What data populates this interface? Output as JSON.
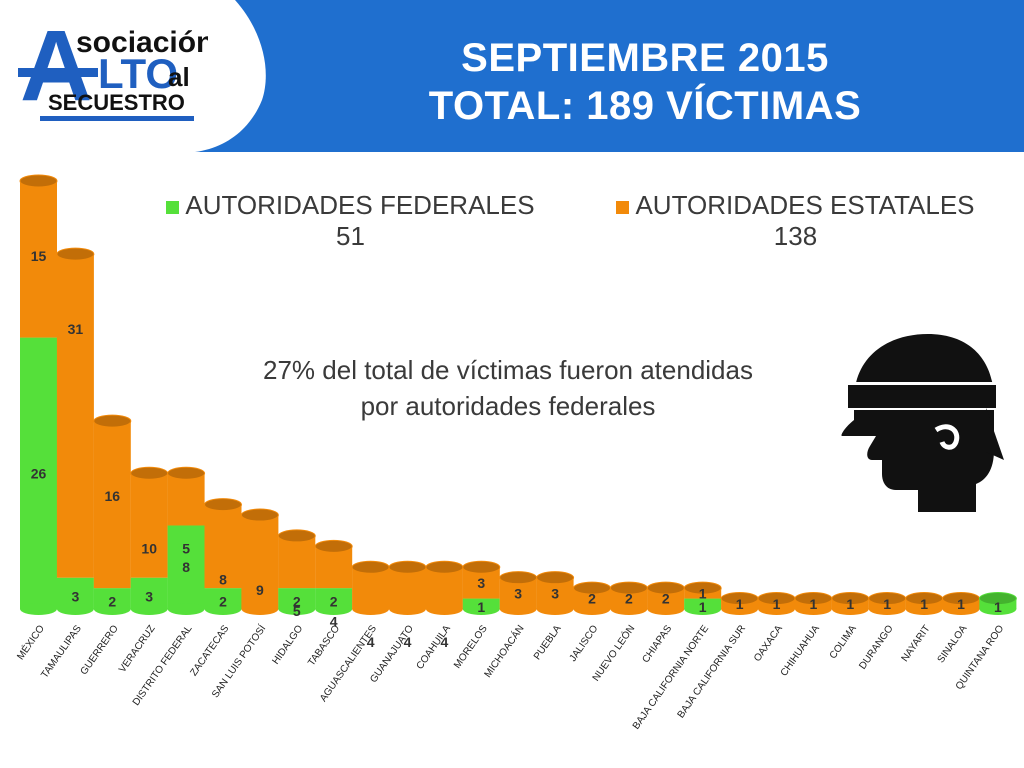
{
  "header": {
    "title_line1": "SEPTIEMBRE 2015",
    "title_line2": "TOTAL: 189 VÍCTIMAS",
    "band_color": "#1f6fcf",
    "logo": {
      "word1": "sociación",
      "big_letter": "A",
      "word2": "LTO",
      "word3": "al",
      "word4": "SECUESTRO"
    }
  },
  "legend": [
    {
      "label": "AUTORIDADES FEDERALES",
      "value": "51",
      "color": "#55e03a"
    },
    {
      "label": "AUTORIDADES ESTATALES",
      "value": "138",
      "color": "#f28a0a"
    }
  ],
  "note": {
    "line1": "27% del total de víctimas fueron atendidas",
    "line2": "por autoridades federales"
  },
  "icon": "blindfolded-head-icon",
  "chart_data": {
    "type": "bar",
    "stacked": true,
    "categories": [
      "MÉXICO",
      "TAMAULIPAS",
      "GUERRERO",
      "VERACRUZ",
      "DISTRITO FEDERAL",
      "ZACATECAS",
      "SAN LUIS POTOSÍ",
      "HIDALGO",
      "TABASCO",
      "AGUASCALIENTES",
      "GUANAJUATO",
      "COAHUILA",
      "MORELOS",
      "MICHOACÁN",
      "PUEBLA",
      "JALISCO",
      "NUEVO LEÓN",
      "CHIAPAS",
      "BAJA CALIFORNIA NORTE",
      "BAJA CALIFORNIA SUR",
      "OAXACA",
      "CHIHUAHUA",
      "COLIMA",
      "DURANGO",
      "NAYARIT",
      "SINALOA",
      "QUINTANA ROO"
    ],
    "series": [
      {
        "name": "AUTORIDADES FEDERALES",
        "color": "#55e03a",
        "values": [
          26,
          3,
          2,
          3,
          8,
          2,
          0,
          2,
          2,
          0,
          0,
          0,
          1,
          0,
          0,
          0,
          0,
          0,
          1,
          0,
          0,
          0,
          0,
          0,
          0,
          0,
          1
        ]
      },
      {
        "name": "AUTORIDADES ESTATALES",
        "color": "#f28a0a",
        "values": [
          15,
          31,
          16,
          10,
          5,
          8,
          9,
          5,
          4,
          4,
          4,
          4,
          3,
          3,
          3,
          2,
          2,
          2,
          1,
          1,
          1,
          1,
          1,
          1,
          1,
          1,
          0
        ]
      }
    ],
    "ylim": [
      0,
      41
    ]
  }
}
